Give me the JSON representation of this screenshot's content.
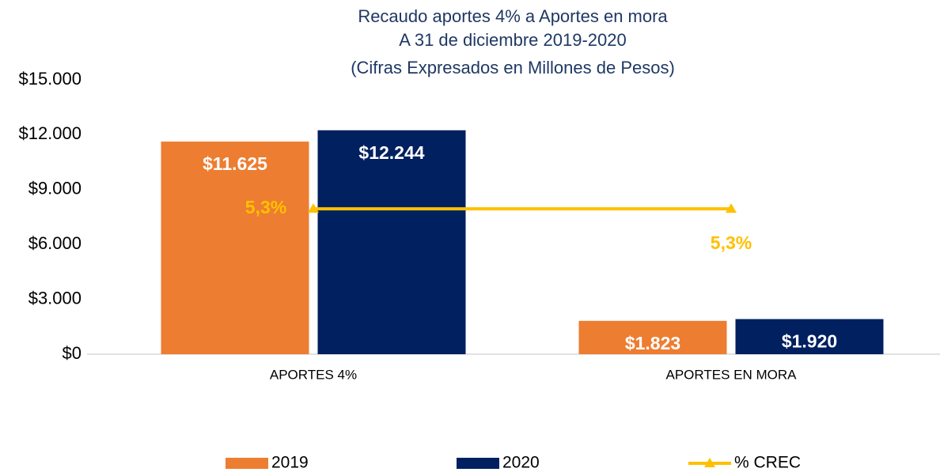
{
  "chart_data": {
    "type": "bar_line",
    "title": [
      "Recaudo aportes 4% a Aportes en mora",
      "A 31 de diciembre 2019-2020",
      "(Cifras Expresados en Millones de Pesos)"
    ],
    "categories": [
      "APORTES 4%",
      "APORTES EN MORA"
    ],
    "series": [
      {
        "name": "2019",
        "type": "bar",
        "color": "#ed7d31",
        "values": [
          11625,
          1823
        ],
        "value_labels": [
          "$11.625",
          "$1.823"
        ]
      },
      {
        "name": "2020",
        "type": "bar",
        "color": "#002060",
        "values": [
          12244,
          1920
        ],
        "value_labels": [
          "$12.244",
          "$1.920"
        ]
      },
      {
        "name": "% CREC",
        "type": "line",
        "axis": "y2",
        "color": "#ffc000",
        "values": [
          5.3,
          5.3
        ],
        "value_labels": [
          "5,3%",
          "5,3%"
        ]
      }
    ],
    "ylim": [
      0,
      15000
    ],
    "yticks": [
      {
        "value": 0,
        "label": "$0"
      },
      {
        "value": 3000,
        "label": "$3.000"
      },
      {
        "value": 6000,
        "label": "$6.000"
      },
      {
        "value": 9000,
        "label": "$9.000"
      },
      {
        "value": 12000,
        "label": "$12.000"
      },
      {
        "value": 15000,
        "label": "$15.000"
      }
    ],
    "y2lim": [
      0,
      10
    ],
    "grid": false,
    "legend": "bottom"
  }
}
